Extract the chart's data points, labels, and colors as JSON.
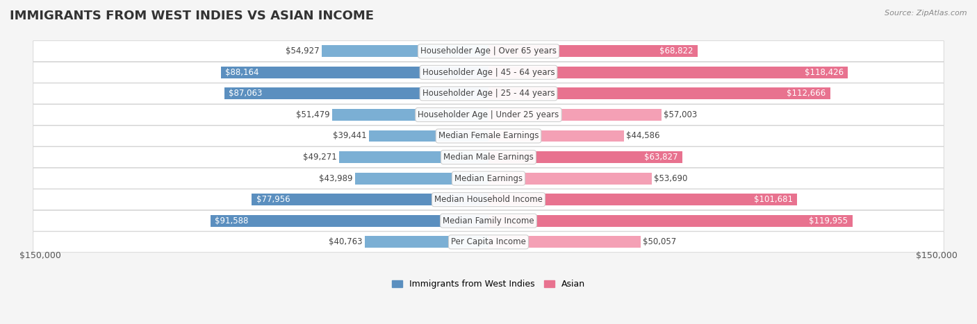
{
  "title": "IMMIGRANTS FROM WEST INDIES VS ASIAN INCOME",
  "source": "Source: ZipAtlas.com",
  "categories": [
    "Per Capita Income",
    "Median Family Income",
    "Median Household Income",
    "Median Earnings",
    "Median Male Earnings",
    "Median Female Earnings",
    "Householder Age | Under 25 years",
    "Householder Age | 25 - 44 years",
    "Householder Age | 45 - 64 years",
    "Householder Age | Over 65 years"
  ],
  "west_indies_values": [
    40763,
    91588,
    77956,
    43989,
    49271,
    39441,
    51479,
    87063,
    88164,
    54927
  ],
  "asian_values": [
    50057,
    119955,
    101681,
    53690,
    63827,
    44586,
    57003,
    112666,
    118426,
    68822
  ],
  "west_indies_labels": [
    "$40,763",
    "$91,588",
    "$77,956",
    "$43,989",
    "$49,271",
    "$39,441",
    "$51,479",
    "$87,063",
    "$88,164",
    "$54,927"
  ],
  "asian_labels": [
    "$50,057",
    "$119,955",
    "$101,681",
    "$53,690",
    "$63,827",
    "$44,586",
    "$57,003",
    "$112,666",
    "$118,426",
    "$68,822"
  ],
  "west_indies_color": "#7BAFD4",
  "west_indies_color_dark": "#5B8FBF",
  "asian_color": "#F4A0B5",
  "asian_color_dark": "#E8728F",
  "max_value": 150000,
  "bg_color": "#f5f5f5",
  "bar_bg_color": "#ffffff",
  "label_fontsize": 8.5,
  "title_fontsize": 13,
  "legend_label_west": "Immigrants from West Indies",
  "legend_label_asian": "Asian",
  "axis_label_left": "$150,000",
  "axis_label_right": "$150,000"
}
